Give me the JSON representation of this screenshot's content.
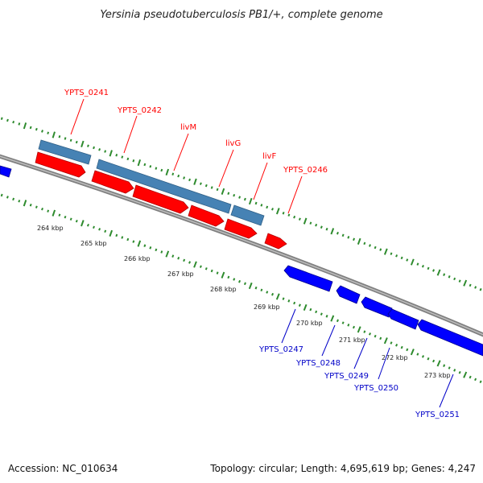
{
  "title": "Yersinia pseudotuberculosis PB1/+, complete genome",
  "accession": "Accession: NC_010634",
  "summary": "Topology: circular; Length: 4,695,619 bp; Genes: 4,247",
  "colors": {
    "forward_gene": "#ff0000",
    "reverse_gene": "#0000ff",
    "cds_bar": "#4682b4",
    "backbone": "#808080",
    "tick": "#2e8b2e"
  },
  "ticks": [
    "264 kbp",
    "265 kbp",
    "266 kbp",
    "267 kbp",
    "268 kbp",
    "269 kbp",
    "270 kbp",
    "271 kbp",
    "272 kbp",
    "273 kbp"
  ],
  "forward_labels": [
    "YPTS_0241",
    "YPTS_0242",
    "livM",
    "livG",
    "livF",
    "YPTS_0246"
  ],
  "reverse_labels": [
    "YPTS_0247",
    "YPTS_0248",
    "YPTS_0249",
    "YPTS_0250",
    "YPTS_0251"
  ]
}
